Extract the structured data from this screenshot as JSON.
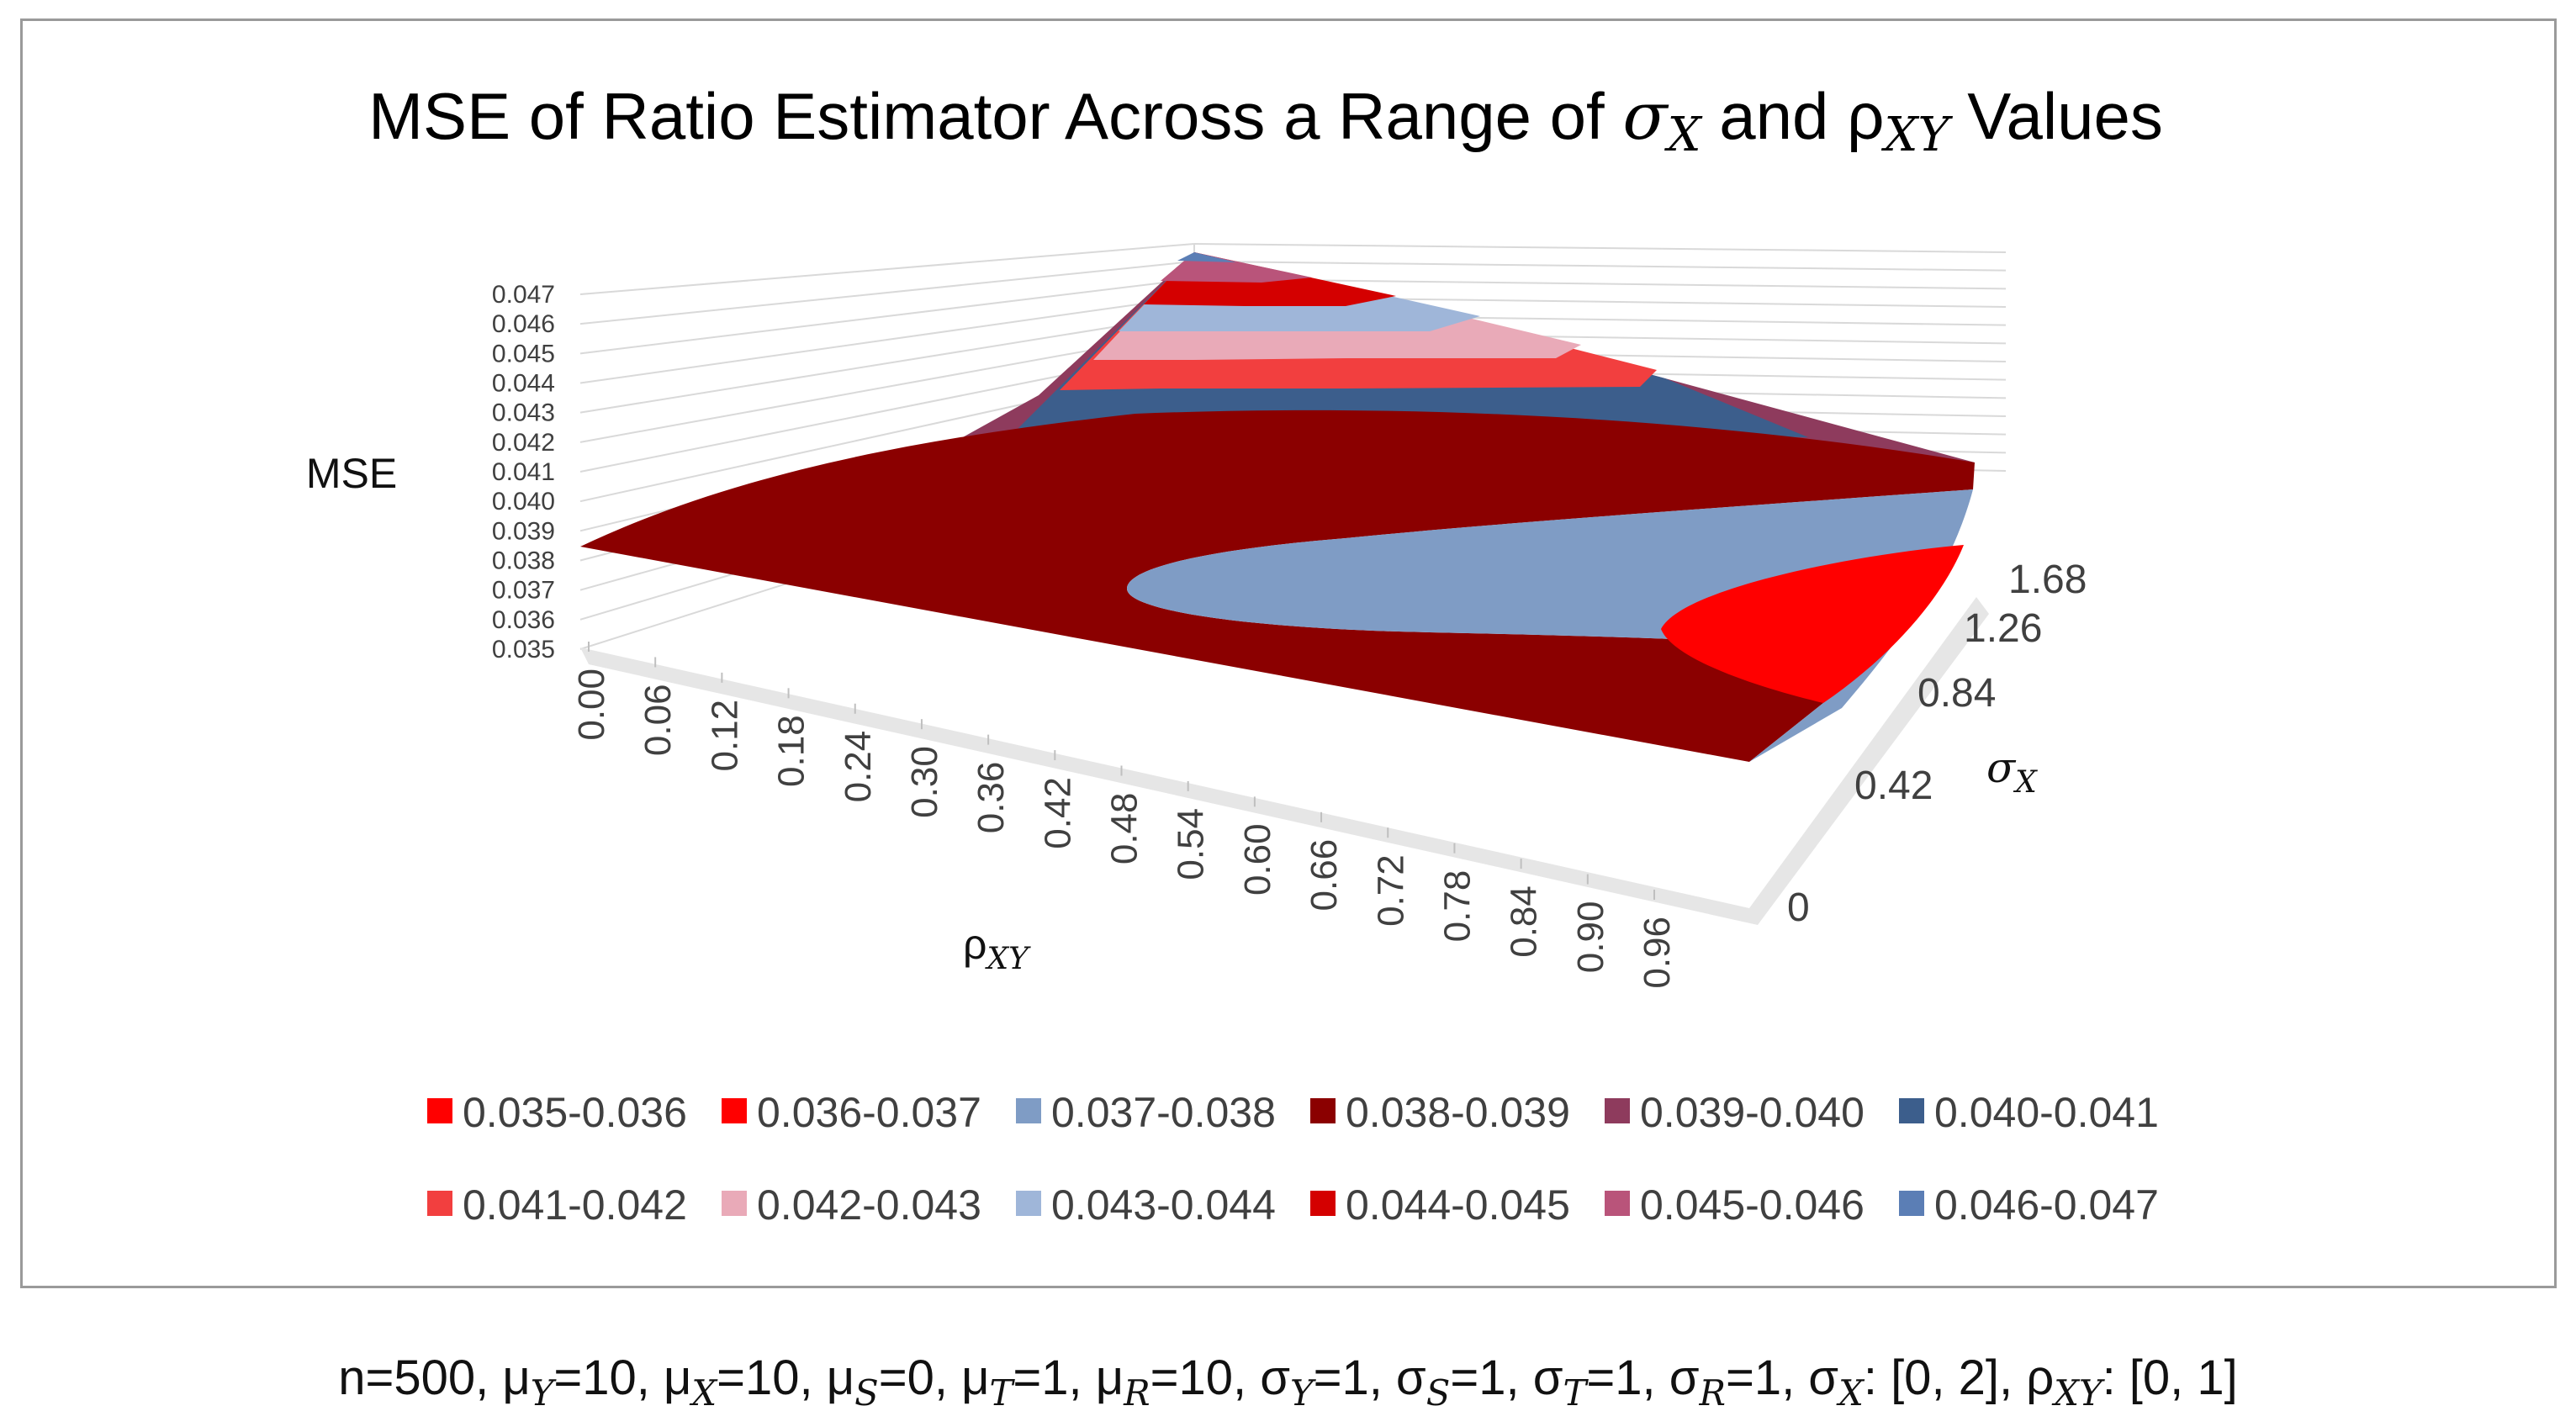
{
  "chart_data": {
    "type": "surface",
    "title": "MSE of Ratio Estimator Across a Range of σX and ρXY Values",
    "title_parts": {
      "prefix": "MSE of Ratio Estimator Across a Range of ",
      "sigma": "σ",
      "sigma_sub": "X",
      "mid": " and ρ",
      "rho_sub": "XY",
      "suffix": " Values"
    },
    "zlabel": "MSE",
    "xlabel": {
      "base": "ρ",
      "sub": "XY"
    },
    "ylabel": {
      "base": "σ",
      "sub": "X"
    },
    "z_ticks": [
      "0.047",
      "0.046",
      "0.045",
      "0.044",
      "0.043",
      "0.042",
      "0.041",
      "0.040",
      "0.039",
      "0.038",
      "0.037",
      "0.036",
      "0.035"
    ],
    "x_ticks": [
      "0.00",
      "0.06",
      "0.12",
      "0.18",
      "0.24",
      "0.30",
      "0.36",
      "0.42",
      "0.48",
      "0.54",
      "0.60",
      "0.66",
      "0.72",
      "0.78",
      "0.84",
      "0.90",
      "0.96"
    ],
    "y_ticks": [
      "0",
      "0.42",
      "0.84",
      "1.26",
      "1.68"
    ],
    "zlim": [
      0.035,
      0.047
    ],
    "xlim": [
      0,
      1
    ],
    "ylim": [
      0,
      2
    ],
    "bands": [
      {
        "label": "0.035-0.036",
        "color": "#ff0000"
      },
      {
        "label": "0.036-0.037",
        "color": "#ff0000"
      },
      {
        "label": "0.037-0.038",
        "color": "#7f9cc5"
      },
      {
        "label": "0.038-0.039",
        "color": "#8b0000"
      },
      {
        "label": "0.039-0.040",
        "color": "#8e3b5d"
      },
      {
        "label": "0.040-0.041",
        "color": "#3c5e8c"
      },
      {
        "label": "0.041-0.042",
        "color": "#f23f3f"
      },
      {
        "label": "0.042-0.043",
        "color": "#e9aab8"
      },
      {
        "label": "0.043-0.044",
        "color": "#9fb6d9"
      },
      {
        "label": "0.044-0.045",
        "color": "#d40000"
      },
      {
        "label": "0.045-0.046",
        "color": "#b9547a"
      },
      {
        "label": "0.046-0.047",
        "color": "#5b7eb5"
      }
    ]
  },
  "caption": {
    "parts": [
      {
        "t": "n=500, μ"
      },
      {
        "s": "Y"
      },
      {
        "t": "=10, μ"
      },
      {
        "s": "X"
      },
      {
        "t": "=10, μ"
      },
      {
        "s": "S"
      },
      {
        "t": "=0, μ"
      },
      {
        "s": "T"
      },
      {
        "t": "=1, μ"
      },
      {
        "s": "R"
      },
      {
        "t": "=10, σ"
      },
      {
        "s": "Y"
      },
      {
        "t": "=1, σ"
      },
      {
        "s": "S"
      },
      {
        "t": "=1, σ"
      },
      {
        "s": "T"
      },
      {
        "t": "=1, σ"
      },
      {
        "s": "R"
      },
      {
        "t": "=1, σ"
      },
      {
        "s": "X"
      },
      {
        "t": ": [0, 2], ρ"
      },
      {
        "s": "XY"
      },
      {
        "t": ":  [0, 1]"
      }
    ]
  }
}
